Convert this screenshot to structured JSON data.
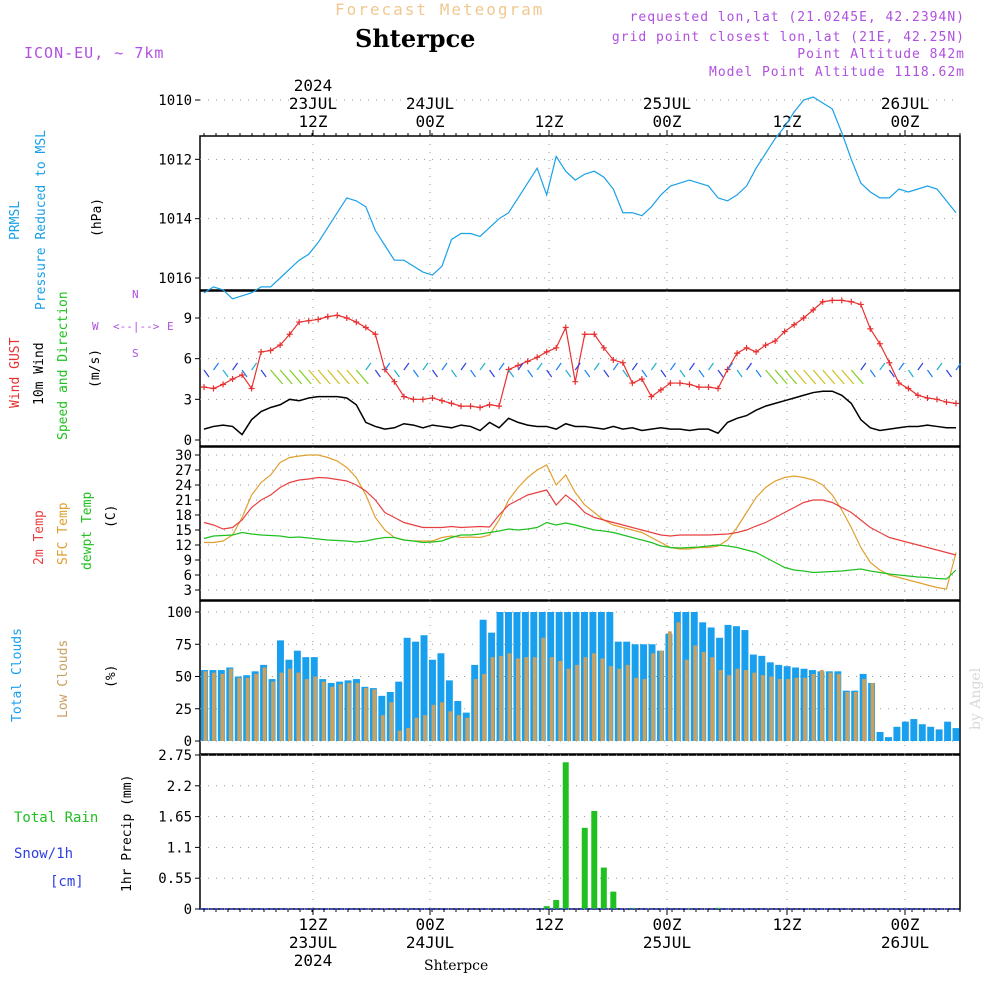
{
  "header": {
    "title": "Forecast Meteogram",
    "station": "Shterpce",
    "model": "ICON-EU, ~ 7km",
    "requested": "requested lon,lat (21.0245E, 42.2394N)",
    "gridpoint": "grid point closest lon,lat (21E, 42.25N)",
    "point_alt": "Point Altitude 842m",
    "model_alt": "Model Point Altitude 1118.62m"
  },
  "time_axis": {
    "top_labels": [
      {
        "lines": [
          "2024",
          "23JUL",
          "12Z"
        ]
      },
      {
        "lines": [
          "24JUL",
          "00Z"
        ]
      },
      {
        "lines": [
          "12Z"
        ]
      },
      {
        "lines": [
          "25JUL",
          "00Z"
        ]
      },
      {
        "lines": [
          "12Z"
        ]
      },
      {
        "lines": [
          "26JUL",
          "00Z"
        ]
      }
    ],
    "bottom_labels": [
      {
        "lines": [
          "12Z",
          "23JUL",
          "2024"
        ]
      },
      {
        "lines": [
          "00Z",
          "24JUL"
        ]
      },
      {
        "lines": [
          "12Z"
        ]
      },
      {
        "lines": [
          "00Z",
          "25JUL"
        ]
      },
      {
        "lines": [
          "12Z"
        ]
      },
      {
        "lines": [
          "00Z",
          "26JUL"
        ]
      }
    ],
    "footer_station": "Shterpce"
  },
  "labels": {
    "prmsl": "PRMSL",
    "pressure_msl": "Pressure Reduced to MSL",
    "hpa": "(hPa)",
    "wind_gust": "Wind GUST",
    "wind_10m": "10m Wind",
    "wind_sd": "Speed and Direction",
    "ms": "(m/s)",
    "compass_n": "N",
    "compass_s": "S",
    "compass_w": "W",
    "compass_e": "E",
    "compass_arrows": "<--|-->",
    "t2m": "2m Temp",
    "sfc": "SFC Temp",
    "dewpt": "dewpt Temp",
    "c": "(C)",
    "total_clouds": "Total Clouds",
    "low_clouds": "Low Clouds",
    "pct": "(%)",
    "total_rain": "Total  Rain",
    "snow": "Snow/1h",
    "cm": "[cm]",
    "precip": "1hr Precip (mm)",
    "watermark": "by Angel"
  },
  "colors": {
    "pressure": "#1aa0e8",
    "gust": "#e83030",
    "wind": "#000000",
    "t2m": "#e84040",
    "sfc": "#e0a030",
    "dewpt": "#20c020",
    "total_clouds": "#18a0ee",
    "low_clouds": "#c8a060",
    "rain": "#20c020",
    "snow": "#3040e0",
    "meta": "#b050e0"
  },
  "chart_data": [
    {
      "type": "line",
      "title": "PRMSL Pressure Reduced to MSL",
      "ylabel": "(hPa)",
      "ylim": [
        1009,
        1017
      ],
      "yticks": [
        1010,
        1012,
        1014,
        1016
      ],
      "series": [
        {
          "name": "PRMSL",
          "values": [
            1016.5,
            1016.3,
            1016.4,
            1016.7,
            1016.6,
            1016.5,
            1016.3,
            1016.3,
            1016.0,
            1015.7,
            1015.4,
            1015.2,
            1014.8,
            1014.3,
            1013.8,
            1013.3,
            1013.4,
            1013.6,
            1014.4,
            1014.9,
            1015.4,
            1015.4,
            1015.6,
            1015.8,
            1015.9,
            1015.6,
            1014.7,
            1014.5,
            1014.5,
            1014.6,
            1014.3,
            1014.0,
            1013.8,
            1013.3,
            1012.8,
            1012.3,
            1013.2,
            1011.9,
            1012.4,
            1012.7,
            1012.5,
            1012.4,
            1012.6,
            1013.0,
            1013.8,
            1013.8,
            1013.9,
            1013.6,
            1013.2,
            1012.9,
            1012.8,
            1012.7,
            1012.8,
            1012.9,
            1013.3,
            1013.4,
            1013.2,
            1012.9,
            1012.3,
            1011.8,
            1011.3,
            1010.9,
            1010.4,
            1010.0,
            1009.9,
            1010.1,
            1010.3,
            1011.1,
            1012.0,
            1012.8,
            1013.1,
            1013.3,
            1013.3,
            1013.0,
            1013.1,
            1013.0,
            1012.9,
            1013.0,
            1013.4,
            1013.8
          ]
        }
      ]
    },
    {
      "type": "line",
      "title": "Wind GUST / 10m Wind Speed and Direction",
      "ylabel": "(m/s)",
      "ylim": [
        0,
        11
      ],
      "yticks": [
        0,
        3,
        6,
        9
      ],
      "series": [
        {
          "name": "Wind GUST",
          "values": [
            3.9,
            3.8,
            4.1,
            4.5,
            4.8,
            3.8,
            6.5,
            6.6,
            7.0,
            7.8,
            8.7,
            8.8,
            8.9,
            9.1,
            9.2,
            9.0,
            8.7,
            8.3,
            7.8,
            5.2,
            4.3,
            3.2,
            3.0,
            3.0,
            3.1,
            2.9,
            2.7,
            2.5,
            2.5,
            2.4,
            2.6,
            2.5,
            5.2,
            5.5,
            5.8,
            6.1,
            6.5,
            6.8,
            8.3,
            4.3,
            7.8,
            7.8,
            6.8,
            5.9,
            5.7,
            4.2,
            4.5,
            3.2,
            3.7,
            4.2,
            4.2,
            4.1,
            3.9,
            3.9,
            3.8,
            5.2,
            6.4,
            6.8,
            6.5,
            7.0,
            7.3,
            8.0,
            8.5,
            9.0,
            9.6,
            10.2,
            10.3,
            10.3,
            10.2,
            10.0,
            8.2,
            7.1,
            5.7,
            4.2,
            3.8,
            3.3,
            3.1,
            3.0,
            2.8,
            2.7
          ]
        },
        {
          "name": "10m Wind",
          "values": [
            0.8,
            1.0,
            1.1,
            1.0,
            0.4,
            1.5,
            2.1,
            2.4,
            2.6,
            3.0,
            2.9,
            3.1,
            3.2,
            3.2,
            3.2,
            3.1,
            2.6,
            1.3,
            1.0,
            0.8,
            0.9,
            1.2,
            1.1,
            0.9,
            1.1,
            1.0,
            0.9,
            1.1,
            1.0,
            0.7,
            1.3,
            0.9,
            1.6,
            1.3,
            1.1,
            1.0,
            1.0,
            0.8,
            1.2,
            1.0,
            1.0,
            0.9,
            0.8,
            1.0,
            0.8,
            0.9,
            0.7,
            0.8,
            0.9,
            0.8,
            0.8,
            0.7,
            0.8,
            0.8,
            0.5,
            1.3,
            1.6,
            1.8,
            2.2,
            2.5,
            2.7,
            2.9,
            3.1,
            3.3,
            3.5,
            3.6,
            3.6,
            3.3,
            2.7,
            1.5,
            0.9,
            0.7,
            0.8,
            0.9,
            1.0,
            1.0,
            1.1,
            1.0,
            0.9,
            0.9
          ]
        }
      ]
    },
    {
      "type": "line",
      "title": "2m Temp / SFC Temp / dewpt Temp",
      "ylabel": "(C)",
      "ylim": [
        1.5,
        31
      ],
      "yticks": [
        3,
        6,
        9,
        12,
        15,
        18,
        21,
        24,
        27,
        30
      ],
      "series": [
        {
          "name": "2m Temp",
          "values": [
            16.5,
            16.0,
            15.2,
            15.5,
            17.0,
            19.5,
            21.0,
            22.0,
            23.5,
            24.5,
            25.0,
            25.2,
            25.5,
            25.4,
            25.1,
            24.8,
            24.0,
            22.8,
            21.0,
            18.5,
            17.5,
            16.5,
            16.0,
            15.5,
            15.5,
            15.5,
            15.7,
            15.5,
            15.6,
            15.7,
            15.6,
            18.0,
            20.0,
            21.0,
            22.0,
            22.5,
            23.0,
            20.0,
            22.0,
            20.5,
            18.5,
            17.5,
            17.0,
            16.5,
            16.0,
            15.5,
            15.0,
            14.5,
            14.0,
            13.8,
            14.0,
            14.0,
            14.0,
            14.0,
            14.1,
            14.2,
            14.5,
            15.0,
            15.8,
            16.5,
            17.5,
            18.5,
            19.5,
            20.5,
            21.0,
            21.0,
            20.5,
            19.5,
            18.5,
            17.0,
            15.5,
            14.5,
            13.5,
            13.0,
            12.5,
            12.0,
            11.5,
            11.0,
            10.5,
            10.0
          ]
        },
        {
          "name": "SFC Temp",
          "values": [
            12.5,
            12.5,
            12.8,
            14.0,
            17.5,
            22.0,
            24.5,
            26.0,
            28.5,
            29.5,
            29.8,
            30.0,
            30.0,
            29.5,
            28.8,
            27.5,
            25.5,
            22.0,
            17.5,
            15.0,
            13.5,
            13.0,
            12.8,
            12.8,
            12.8,
            13.5,
            13.8,
            13.5,
            13.6,
            13.5,
            14.0,
            17.0,
            21.0,
            23.5,
            25.5,
            27.0,
            28.0,
            24.0,
            26.0,
            22.5,
            20.0,
            18.5,
            17.0,
            16.0,
            15.5,
            15.0,
            14.5,
            13.5,
            12.5,
            11.5,
            11.2,
            11.2,
            11.5,
            11.5,
            11.8,
            13.0,
            15.5,
            18.5,
            21.5,
            23.5,
            24.8,
            25.5,
            25.8,
            25.5,
            25.0,
            24.0,
            22.0,
            19.0,
            15.5,
            11.5,
            8.5,
            7.0,
            6.0,
            5.5,
            5.0,
            4.5,
            4.0,
            3.5,
            3.2,
            10.5
          ]
        },
        {
          "name": "dewpt Temp",
          "values": [
            13.3,
            13.8,
            13.9,
            14.0,
            14.5,
            14.2,
            14.0,
            13.9,
            13.8,
            13.5,
            13.6,
            13.4,
            13.2,
            13.0,
            12.9,
            12.8,
            12.6,
            12.8,
            13.2,
            13.5,
            13.5,
            13.0,
            12.8,
            12.5,
            12.6,
            12.8,
            13.5,
            14.0,
            14.0,
            14.2,
            14.5,
            14.8,
            15.2,
            15.0,
            15.2,
            15.5,
            16.5,
            16.0,
            16.4,
            16.0,
            15.5,
            15.0,
            14.8,
            14.5,
            14.0,
            13.5,
            13.0,
            12.5,
            11.8,
            11.5,
            11.4,
            11.5,
            11.6,
            11.8,
            12.0,
            11.8,
            11.5,
            11.0,
            10.5,
            9.5,
            8.5,
            7.5,
            7.0,
            6.8,
            6.5,
            6.6,
            6.7,
            6.8,
            7.0,
            7.2,
            6.8,
            6.5,
            6.2,
            6.0,
            5.8,
            5.6,
            5.5,
            5.3,
            5.2,
            7.0
          ]
        }
      ]
    },
    {
      "type": "bar",
      "title": "Total Clouds / Low Clouds",
      "ylabel": "(%)",
      "ylim": [
        0,
        105
      ],
      "yticks": [
        0,
        25,
        50,
        75,
        100
      ],
      "series": [
        {
          "name": "Total Clouds",
          "values": [
            55,
            55,
            55,
            57,
            50,
            51,
            54,
            59,
            48,
            78,
            63,
            70,
            65,
            65,
            48,
            45,
            46,
            47,
            48,
            42,
            41,
            35,
            38,
            46,
            80,
            77,
            82,
            63,
            68,
            47,
            31,
            22,
            59,
            94,
            84,
            100,
            100,
            100,
            100,
            100,
            100,
            100,
            100,
            100,
            100,
            100,
            100,
            100,
            100,
            77,
            77,
            75,
            75,
            75,
            70,
            83,
            100,
            100,
            100,
            92,
            88,
            80,
            90,
            89,
            86,
            67,
            66,
            61,
            59,
            58,
            57,
            56,
            55,
            54,
            54,
            54,
            39,
            39,
            52,
            45,
            7,
            3,
            11,
            15,
            17,
            13,
            11,
            9,
            15,
            10
          ]
        },
        {
          "name": "Low Clouds",
          "values": [
            54,
            53,
            52,
            56,
            49,
            49,
            52,
            57,
            46,
            53,
            56,
            53,
            48,
            50,
            46,
            42,
            44,
            45,
            45,
            41,
            40,
            20,
            30,
            8,
            10,
            18,
            20,
            28,
            30,
            23,
            20,
            18,
            48,
            52,
            65,
            66,
            68,
            64,
            65,
            65,
            80,
            65,
            62,
            56,
            59,
            65,
            68,
            64,
            58,
            56,
            59,
            49,
            48,
            68,
            70,
            85,
            92,
            63,
            74,
            69,
            65,
            55,
            51,
            56,
            55,
            53,
            51,
            50,
            48,
            48,
            49,
            49,
            52,
            55,
            53,
            52,
            38,
            38,
            48,
            45,
            0,
            0,
            0,
            0,
            0,
            0,
            0,
            0,
            0,
            0
          ]
        }
      ]
    },
    {
      "type": "bar",
      "title": "1hr Precip (mm)",
      "ylabel": "1hr Precip (mm)",
      "ylim": [
        0,
        2.8
      ],
      "yticks": [
        0,
        0.55,
        1.1,
        1.65,
        2.2,
        2.75
      ],
      "yticklabels": [
        "0",
        "0.55",
        "1.1",
        "1.65",
        "2.2",
        "2.75"
      ],
      "series": [
        {
          "name": "Total Rain",
          "values": [
            0,
            0,
            0,
            0,
            0,
            0,
            0,
            0,
            0,
            0,
            0,
            0,
            0,
            0,
            0,
            0,
            0,
            0,
            0,
            0,
            0,
            0,
            0,
            0,
            0,
            0,
            0,
            0,
            0,
            0,
            0,
            0,
            0,
            0,
            0,
            0,
            0.05,
            0.16,
            2.62,
            0,
            1.45,
            1.75,
            0.74,
            0.31,
            0,
            0.02,
            0,
            0,
            0,
            0,
            0,
            0.01,
            0,
            0,
            0.02,
            0,
            0,
            0,
            0,
            0,
            0,
            0,
            0,
            0,
            0,
            0,
            0,
            0,
            0,
            0,
            0,
            0,
            0,
            0,
            0,
            0,
            0,
            0,
            0,
            0
          ]
        }
      ]
    }
  ]
}
